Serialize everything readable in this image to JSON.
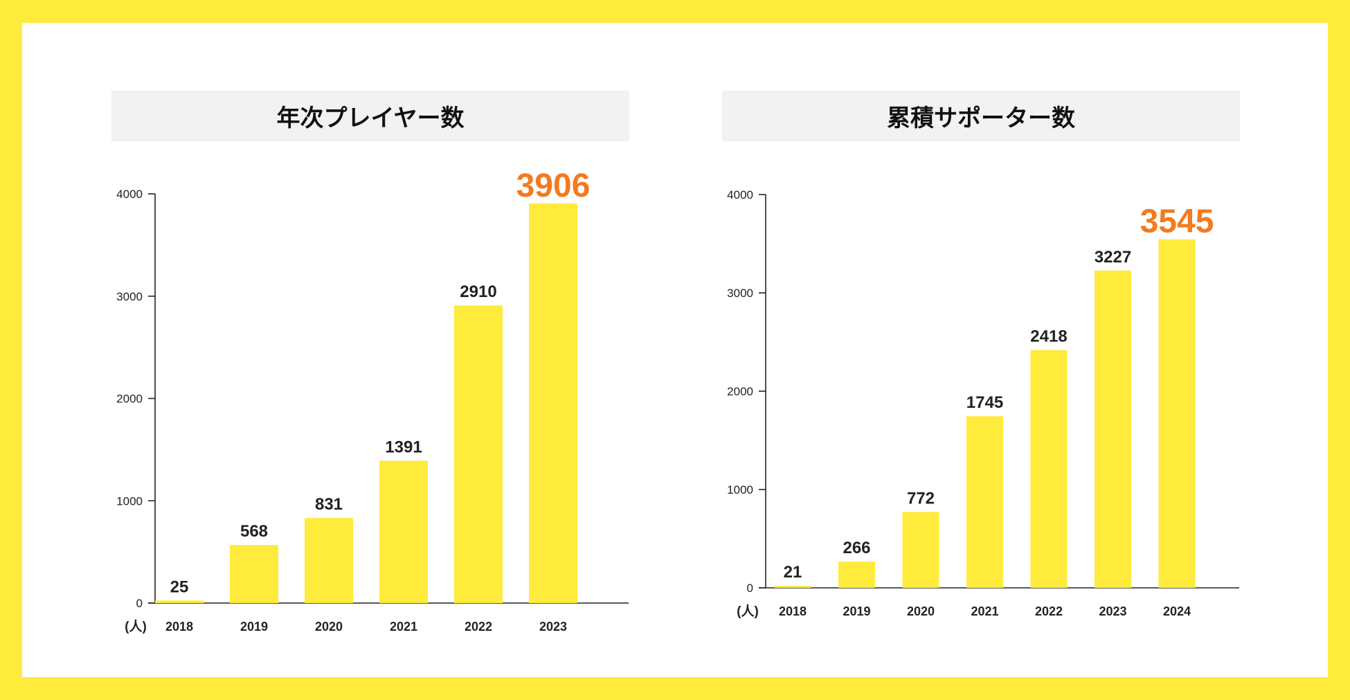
{
  "colors": {
    "frame": "#ffeb3b",
    "bar": "#ffeb3b",
    "highlight": "#f47a1f",
    "label": "#222222",
    "axis": "#222222"
  },
  "chart_data": [
    {
      "type": "bar",
      "title": "年次プレイヤー数",
      "unit_label": "(人)",
      "categories": [
        "2018",
        "2019",
        "2020",
        "2021",
        "2022",
        "2023"
      ],
      "values": [
        25,
        568,
        831,
        1391,
        2910,
        3906
      ],
      "data_labels": [
        "25",
        "568",
        "831",
        "1391",
        "2910",
        "3906"
      ],
      "highlight_index": 5,
      "ylim": [
        0,
        4000
      ],
      "yticks": [
        0,
        1000,
        2000,
        3000,
        4000
      ],
      "ytick_labels": [
        "0",
        "1000",
        "2000",
        "3000",
        "4000"
      ],
      "grid": false,
      "xlabel": "",
      "ylabel": ""
    },
    {
      "type": "bar",
      "title": "累積サポーター数",
      "unit_label": "(人)",
      "categories": [
        "2018",
        "2019",
        "2020",
        "2021",
        "2022",
        "2023",
        "2024"
      ],
      "values": [
        21,
        266,
        772,
        1745,
        2418,
        3227,
        3545
      ],
      "data_labels": [
        "21",
        "266",
        "772",
        "1745",
        "2418",
        "3227",
        "3545"
      ],
      "highlight_index": 6,
      "ylim": [
        0,
        4000
      ],
      "yticks": [
        0,
        1000,
        2000,
        3000,
        4000
      ],
      "ytick_labels": [
        "0",
        "1000",
        "2000",
        "3000",
        "4000"
      ],
      "grid": false,
      "xlabel": "",
      "ylabel": ""
    }
  ]
}
